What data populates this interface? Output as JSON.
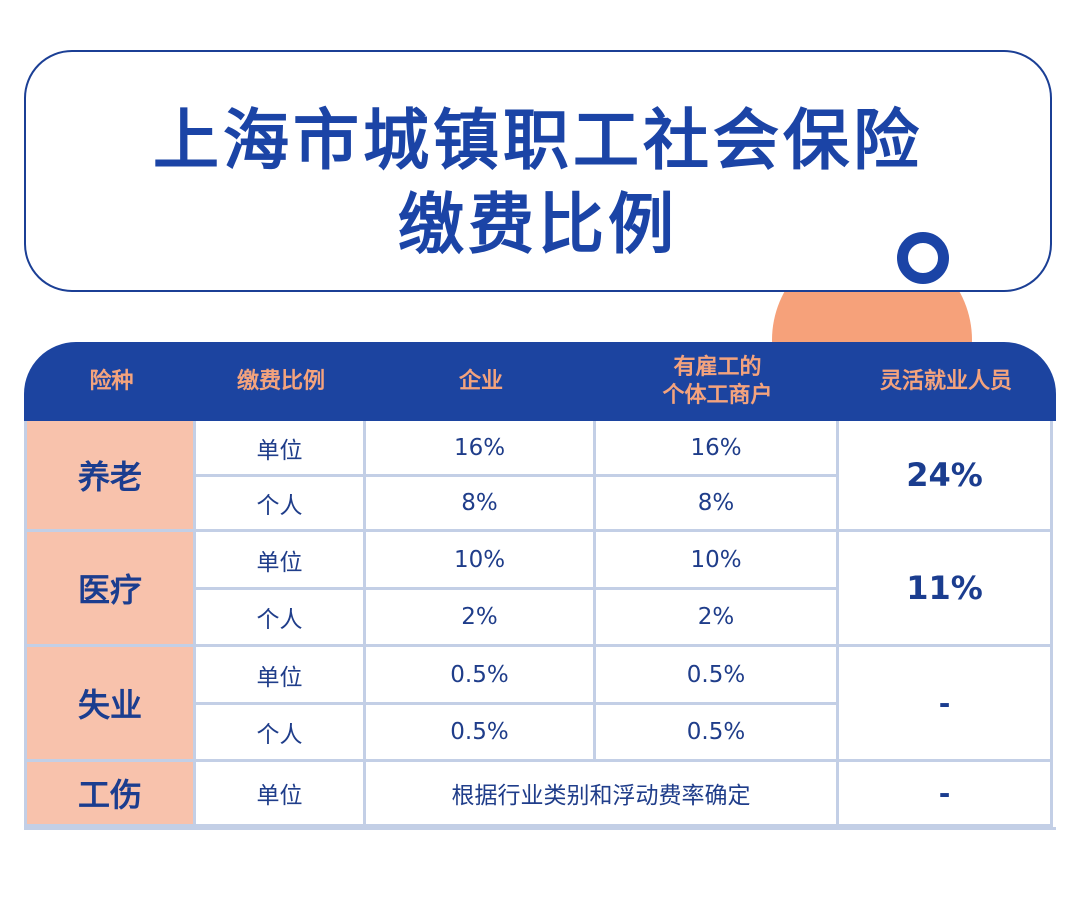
{
  "title": {
    "line1": "上海市城镇职工社会保险",
    "line2": "缴费比例"
  },
  "table": {
    "headers": {
      "type": "险种",
      "ratio": "缴费比例",
      "enterprise": "企业",
      "individual_line1": "有雇工的",
      "individual_line2": "个体工商户",
      "flexible": "灵活就业人员"
    },
    "rows": [
      {
        "type": "养老",
        "sub": [
          {
            "payer": "单位",
            "enterprise": "16%",
            "individual": "16%"
          },
          {
            "payer": "个人",
            "enterprise": "8%",
            "individual": "8%"
          }
        ],
        "flexible": "24%"
      },
      {
        "type": "医疗",
        "sub": [
          {
            "payer": "单位",
            "enterprise": "10%",
            "individual": "10%"
          },
          {
            "payer": "个人",
            "enterprise": "2%",
            "individual": "2%"
          }
        ],
        "flexible": "11%"
      },
      {
        "type": "失业",
        "sub": [
          {
            "payer": "单位",
            "enterprise": "0.5%",
            "individual": "0.5%"
          },
          {
            "payer": "个人",
            "enterprise": "0.5%",
            "individual": "0.5%"
          }
        ],
        "flexible": "-"
      },
      {
        "type": "工伤",
        "payer": "单位",
        "note": "根据行业类别和浮动费率确定",
        "flexible": "-"
      }
    ]
  },
  "colors": {
    "navy": "#1c44a0",
    "salmon": "#f8c2ac",
    "orange": "#f6a17a",
    "grid_line": "#c3cfe6"
  }
}
